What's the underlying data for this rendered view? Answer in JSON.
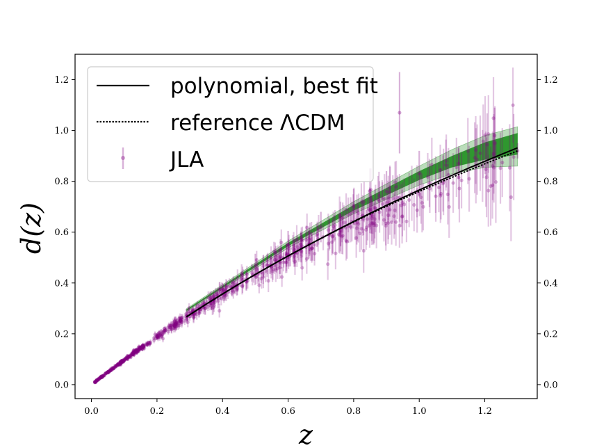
{
  "chart_data": {
    "type": "scatter",
    "title": "",
    "xlabel": "z",
    "ylabel": "d(z)",
    "xlim": [
      -0.05,
      1.36
    ],
    "ylim": [
      -0.055,
      1.3
    ],
    "xticks": [
      {
        "value": 0.0,
        "label": "0.0"
      },
      {
        "value": 0.2,
        "label": "0.2"
      },
      {
        "value": 0.4,
        "label": "0.4"
      },
      {
        "value": 0.6,
        "label": "0.6"
      },
      {
        "value": 0.8,
        "label": "0.8"
      },
      {
        "value": 1.0,
        "label": "1.0"
      },
      {
        "value": 1.2,
        "label": "1.2"
      }
    ],
    "yticks": [
      {
        "value": 0.0,
        "label": "0.0"
      },
      {
        "value": 0.2,
        "label": "0.2"
      },
      {
        "value": 0.4,
        "label": "0.4"
      },
      {
        "value": 0.6,
        "label": "0.6"
      },
      {
        "value": 0.8,
        "label": "0.8"
      },
      {
        "value": 1.0,
        "label": "1.0"
      },
      {
        "value": 1.2,
        "label": "1.2"
      }
    ],
    "legend": {
      "placement": "upper-left",
      "entries": [
        {
          "label": "polynomial, best fit",
          "style": "solid-line"
        },
        {
          "label": "reference ΛCDM",
          "style": "dotted-line"
        },
        {
          "label": "JLA",
          "style": "errorbar-marker"
        }
      ]
    },
    "colors": {
      "data": "#800080",
      "band_inner": "#008000",
      "band_outer": "#3a9a3a",
      "best_fit": "#000000",
      "reference": "#000000"
    },
    "series": [
      {
        "name": "polynomial, best fit",
        "kind": "line",
        "x": [
          0.29,
          0.35,
          0.4,
          0.45,
          0.5,
          0.55,
          0.6,
          0.65,
          0.7,
          0.75,
          0.8,
          0.85,
          0.9,
          0.95,
          1.0,
          1.05,
          1.1,
          1.15,
          1.2,
          1.25,
          1.3
        ],
        "y": [
          0.293,
          0.345,
          0.389,
          0.431,
          0.472,
          0.512,
          0.551,
          0.589,
          0.626,
          0.661,
          0.696,
          0.729,
          0.762,
          0.793,
          0.823,
          0.852,
          0.88,
          0.906,
          0.932,
          0.957,
          0.94
        ]
      },
      {
        "name": "reference ΛCDM",
        "kind": "line",
        "x": [
          0.29,
          0.35,
          0.4,
          0.45,
          0.5,
          0.55,
          0.6,
          0.65,
          0.7,
          0.75,
          0.8,
          0.85,
          0.9,
          0.95,
          1.0,
          1.05,
          1.1,
          1.15,
          1.2,
          1.25,
          1.3
        ],
        "y": [
          0.294,
          0.347,
          0.39,
          0.432,
          0.472,
          0.511,
          0.549,
          0.586,
          0.621,
          0.656,
          0.689,
          0.721,
          0.752,
          0.782,
          0.811,
          0.839,
          0.866,
          0.891,
          0.915,
          0.934,
          0.926
        ]
      },
      {
        "name": "best fit band",
        "kind": "band",
        "x": [
          0.29,
          0.6,
          0.8,
          1.0,
          1.1,
          1.2,
          1.3
        ],
        "lower_inner": [
          0.29,
          0.545,
          0.685,
          0.805,
          0.855,
          0.885,
          0.905
        ],
        "upper_inner": [
          0.296,
          0.558,
          0.707,
          0.84,
          0.9,
          0.953,
          0.99
        ],
        "lower_outer": [
          0.287,
          0.538,
          0.672,
          0.785,
          0.83,
          0.855,
          0.86
        ],
        "upper_outer": [
          0.299,
          0.565,
          0.72,
          0.86,
          0.925,
          0.98,
          1.015
        ]
      },
      {
        "name": "JLA",
        "kind": "errorbar-scatter",
        "count": 740,
        "x_range": [
          0.01,
          1.3
        ],
        "relation": "d ≈ z·(1 - 0.29·z + 0.05·z²) with scatter growing with z",
        "sample_points": [
          {
            "x": 0.01,
            "y": 0.01,
            "err": 0.002
          },
          {
            "x": 0.05,
            "y": 0.05,
            "err": 0.004
          },
          {
            "x": 0.1,
            "y": 0.095,
            "err": 0.006
          },
          {
            "x": 0.2,
            "y": 0.19,
            "err": 0.012
          },
          {
            "x": 0.3,
            "y": 0.28,
            "err": 0.018
          },
          {
            "x": 0.4,
            "y": 0.37,
            "err": 0.03
          },
          {
            "x": 0.5,
            "y": 0.47,
            "err": 0.045
          },
          {
            "x": 0.6,
            "y": 0.55,
            "err": 0.055
          },
          {
            "x": 0.7,
            "y": 0.62,
            "err": 0.06
          },
          {
            "x": 0.8,
            "y": 0.7,
            "err": 0.07
          },
          {
            "x": 0.9,
            "y": 0.76,
            "err": 0.08
          },
          {
            "x": 0.94,
            "y": 1.07,
            "err": 0.16
          },
          {
            "x": 1.0,
            "y": 0.83,
            "err": 0.09
          },
          {
            "x": 1.12,
            "y": 0.87,
            "err": 0.06
          },
          {
            "x": 1.23,
            "y": 0.98,
            "err": 0.11
          },
          {
            "x": 1.3,
            "y": 0.92,
            "err": 0.03
          }
        ]
      }
    ]
  }
}
